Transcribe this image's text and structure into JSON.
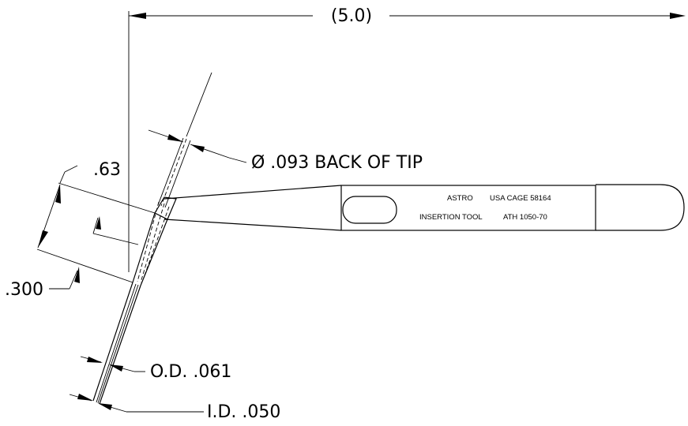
{
  "dimensions": {
    "overall_length": "(5.0)",
    "tip_angle_length": ".63",
    "back_of_tip": "Ø .093 BACK OF TIP",
    "offset": ".300",
    "outer_diameter": "O.D.  .061",
    "inner_diameter": "I.D.  .050"
  },
  "tool_labels": {
    "brand": "ASTRO",
    "cage": "USA CAGE 58164",
    "name": "INSERTION TOOL",
    "part_number": "ATH 1050-70"
  }
}
